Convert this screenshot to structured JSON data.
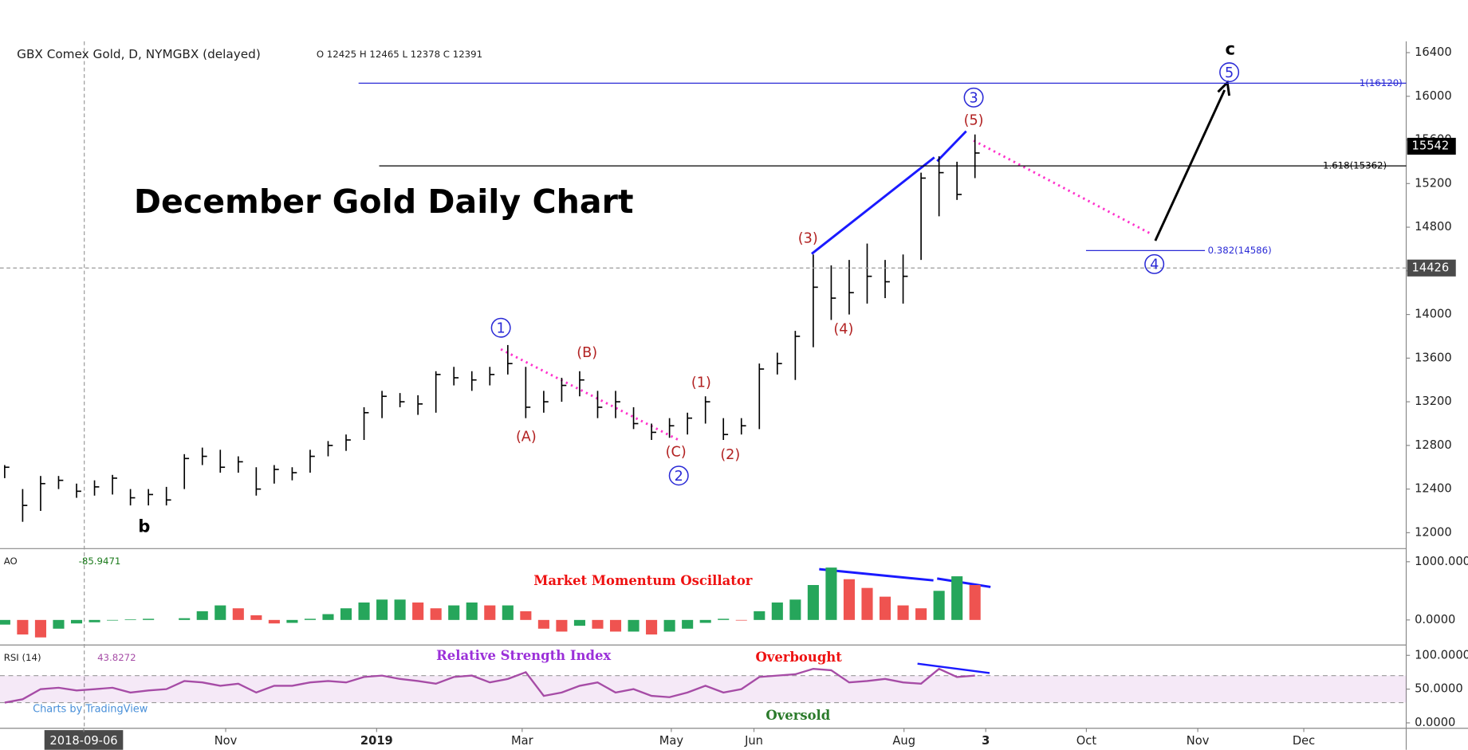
{
  "chart_data": [
    {
      "type": "ohlc",
      "title": "December Gold Daily Chart",
      "legend": "GBX Comex Gold, D, NYMGBX (delayed)",
      "ohlc_legend": "O 12425 H 12465 L 12378 C 12391",
      "color": "#000000",
      "xlim": [
        0,
        78
      ],
      "xticks": [
        {
          "value": 4.4,
          "label": "2018-09-06"
        },
        {
          "value": 12.3,
          "label": "Nov"
        },
        {
          "value": 20.7,
          "label": "2019"
        },
        {
          "value": 28.8,
          "label": "Mar"
        },
        {
          "value": 37.1,
          "label": "May"
        },
        {
          "value": 41.7,
          "label": "Jun"
        },
        {
          "value": 50.05,
          "label": "Aug"
        },
        {
          "value": 54.6,
          "label": "3"
        },
        {
          "value": 60.2,
          "label": "Oct"
        },
        {
          "value": 66.4,
          "label": "Nov"
        },
        {
          "value": 72.3,
          "label": "Dec"
        }
      ],
      "ylim": [
        11863,
        16503
      ],
      "yticks": [
        12000,
        12400,
        12800,
        13200,
        13600,
        14000,
        14400,
        14800,
        15200,
        15600,
        16000,
        16400
      ],
      "high": [
        12620,
        12400,
        12520,
        12520,
        12450,
        12480,
        12530,
        12400,
        12400,
        12420,
        12720,
        12780,
        12760,
        12700,
        12600,
        12620,
        12600,
        12760,
        12840,
        12900,
        13150,
        13300,
        13280,
        13260,
        13480,
        13520,
        13480,
        13520,
        13720,
        13520,
        13300,
        13420,
        13480,
        13300,
        13300,
        13150,
        13000,
        13050,
        13100,
        13250,
        13050,
        13050,
        13550,
        13650,
        13850,
        14550,
        14450,
        14500,
        14650,
        14500,
        14550,
        15300,
        15450,
        15400,
        15650
      ],
      "low": [
        12500,
        12100,
        12200,
        12400,
        12320,
        12340,
        12350,
        12250,
        12250,
        12250,
        12400,
        12620,
        12550,
        12550,
        12340,
        12450,
        12480,
        12550,
        12700,
        12750,
        12850,
        13050,
        13150,
        13080,
        13100,
        13350,
        13300,
        13350,
        13450,
        13050,
        13100,
        13200,
        13250,
        13050,
        13050,
        12950,
        12850,
        12870,
        12900,
        13000,
        12850,
        12900,
        12950,
        13450,
        13400,
        13700,
        13950,
        14000,
        14100,
        14150,
        14100,
        14500,
        14900,
        15050,
        15250
      ],
      "close": [
        12600,
        12250,
        12450,
        12480,
        12380,
        12420,
        12500,
        12320,
        12350,
        12300,
        12680,
        12700,
        12600,
        12650,
        12400,
        12580,
        12550,
        12700,
        12800,
        12850,
        13100,
        13250,
        13200,
        13180,
        13450,
        13420,
        13400,
        13450,
        13550,
        13150,
        13200,
        13350,
        13400,
        13150,
        13200,
        13000,
        12920,
        12980,
        13050,
        13200,
        12900,
        12980,
        13500,
        13550,
        13800,
        14250,
        14150,
        14200,
        14350,
        14300,
        14350,
        15250,
        15300,
        15100,
        15480
      ],
      "last_price": 15542,
      "crosshair_price": 14426,
      "levels": [
        {
          "value": 16120,
          "label": "1(16120)"
        },
        {
          "value": 15362,
          "label": "1.618(15362)"
        },
        {
          "value": 14586,
          "label": "0.382(14586)"
        }
      ],
      "wave_labels": {
        "major": [
          "1",
          "2",
          "3",
          "4",
          "5"
        ],
        "minor": [
          "(A)",
          "(B)",
          "(C)",
          "(1)",
          "(2)",
          "(3)",
          "(4)",
          "(5)"
        ],
        "degree": [
          "b",
          "c"
        ]
      }
    },
    {
      "type": "histogram",
      "legend": "AO",
      "last_value": "-85.9471",
      "annotation": "Market Momentum Oscillator",
      "up_color": "#26a65b",
      "down_color": "#ef5350",
      "ylim": [
        -430,
        1210
      ],
      "yticks": [
        {
          "value": 1000,
          "label": "1000.0000"
        },
        {
          "value": 0,
          "label": "0.0000"
        }
      ],
      "values": [
        -80,
        -250,
        -300,
        -150,
        -60,
        -40,
        -10,
        10,
        20,
        0,
        30,
        150,
        250,
        200,
        80,
        -60,
        -50,
        20,
        100,
        200,
        300,
        350,
        350,
        300,
        200,
        250,
        300,
        250,
        250,
        150,
        -150,
        -200,
        -100,
        -150,
        -200,
        -200,
        -250,
        -200,
        -150,
        -50,
        20,
        -10,
        150,
        300,
        350,
        600,
        900,
        700,
        550,
        400,
        250,
        200,
        500,
        750,
        600
      ]
    },
    {
      "type": "line",
      "legend": "RSI (14)",
      "last_value": "43.8272",
      "title": "Relative Strength Index",
      "annotations": [
        "Overbought",
        "Oversold"
      ],
      "color": "#a64ca6",
      "overbought": 70,
      "oversold": 30,
      "ylim": [
        -8,
        114
      ],
      "yticks": [
        {
          "value": 100,
          "label": "100.0000"
        },
        {
          "value": 50,
          "label": "50.0000"
        },
        {
          "value": 0,
          "label": "0.0000"
        }
      ],
      "values": [
        30,
        35,
        50,
        52,
        48,
        50,
        52,
        45,
        48,
        50,
        62,
        60,
        55,
        58,
        45,
        55,
        55,
        60,
        62,
        60,
        68,
        70,
        65,
        62,
        58,
        68,
        70,
        60,
        65,
        75,
        40,
        45,
        55,
        60,
        45,
        50,
        40,
        38,
        45,
        55,
        45,
        50,
        68,
        70,
        72,
        80,
        78,
        60,
        62,
        65,
        60,
        58,
        80,
        68,
        70
      ]
    }
  ],
  "watermark": "Charts by TradingView"
}
